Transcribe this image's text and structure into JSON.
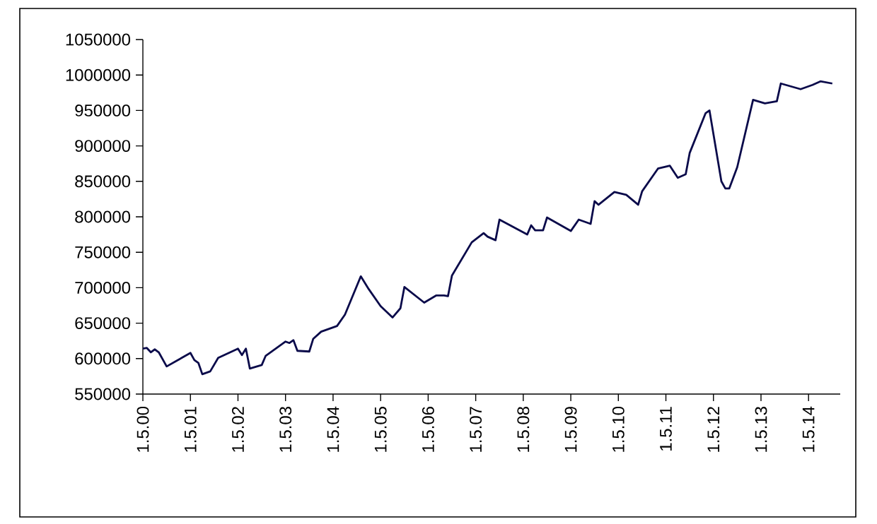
{
  "chart_data": {
    "type": "line",
    "x": [
      "2000-05",
      "2000-06",
      "2000-07",
      "2000-08",
      "2000-09",
      "2000-11",
      "2001-05",
      "2001-06",
      "2001-07",
      "2001-08",
      "2001-10",
      "2001-12",
      "2002-05",
      "2002-06",
      "2002-07",
      "2002-08",
      "2002-11",
      "2002-12",
      "2003-05",
      "2003-06",
      "2003-07",
      "2003-08",
      "2003-11",
      "2003-12",
      "2004-02",
      "2004-06",
      "2004-08",
      "2004-10",
      "2004-12",
      "2005-02",
      "2005-05",
      "2005-08",
      "2005-10",
      "2005-11",
      "2006-04",
      "2006-07",
      "2006-09",
      "2006-10",
      "2006-11",
      "2007-04",
      "2007-07",
      "2007-08",
      "2007-10",
      "2007-11",
      "2008-06",
      "2008-07",
      "2008-08",
      "2008-10",
      "2008-11",
      "2009-05",
      "2009-07",
      "2009-10",
      "2009-11",
      "2009-12",
      "2010-04",
      "2010-07",
      "2010-10",
      "2010-11",
      "2011-03",
      "2011-06",
      "2011-08",
      "2011-10",
      "2011-11",
      "2012-03",
      "2012-04",
      "2012-07",
      "2012-08",
      "2012-09",
      "2012-11",
      "2013-03",
      "2013-06",
      "2013-09",
      "2013-10",
      "2014-03",
      "2014-06",
      "2014-08",
      "2014-11"
    ],
    "series": [
      {
        "color": "#0a0a4a",
        "values": [
          614000,
          615000,
          609000,
          613000,
          609000,
          589000,
          608000,
          598000,
          594000,
          578000,
          582000,
          601000,
          614000,
          605000,
          614000,
          586000,
          591000,
          604000,
          624000,
          622000,
          626000,
          611000,
          610000,
          628000,
          638000,
          646000,
          662000,
          689000,
          716000,
          698000,
          674000,
          658000,
          671000,
          701000,
          679000,
          689000,
          689000,
          688000,
          717000,
          764000,
          777000,
          772000,
          767000,
          796000,
          775000,
          788000,
          781000,
          781000,
          799000,
          780000,
          796000,
          790000,
          822000,
          817000,
          835000,
          831000,
          817000,
          836000,
          868000,
          872000,
          855000,
          860000,
          890000,
          946000,
          950000,
          850000,
          840000,
          840000,
          870000,
          965000,
          960000,
          963000,
          988000,
          980000,
          986000,
          991000,
          988000
        ]
      }
    ],
    "xlim": [
      "2000-05",
      "2015-01"
    ],
    "xticks": [
      {
        "value": "2000-05",
        "label": "1.5.00"
      },
      {
        "value": "2001-05",
        "label": "1.5.01"
      },
      {
        "value": "2002-05",
        "label": "1.5.02"
      },
      {
        "value": "2003-05",
        "label": "1.5.03"
      },
      {
        "value": "2004-05",
        "label": "1.5.04"
      },
      {
        "value": "2005-05",
        "label": "1.5.05"
      },
      {
        "value": "2006-05",
        "label": "1.5.06"
      },
      {
        "value": "2007-05",
        "label": "1.5.07"
      },
      {
        "value": "2008-05",
        "label": "1.5.08"
      },
      {
        "value": "2009-05",
        "label": "1.5.09"
      },
      {
        "value": "2010-05",
        "label": "1.5.10"
      },
      {
        "value": "2011-05",
        "label": "1.5.11"
      },
      {
        "value": "2012-05",
        "label": "1.5.12"
      },
      {
        "value": "2013-05",
        "label": "1.5.13"
      },
      {
        "value": "2014-05",
        "label": "1.5.14"
      }
    ],
    "ylim": [
      550000,
      1050000
    ],
    "yticks": [
      550000,
      600000,
      650000,
      700000,
      750000,
      800000,
      850000,
      900000,
      950000,
      1000000,
      1050000
    ],
    "grid": false,
    "legend": false,
    "marker": "none",
    "line_style": "solid"
  }
}
